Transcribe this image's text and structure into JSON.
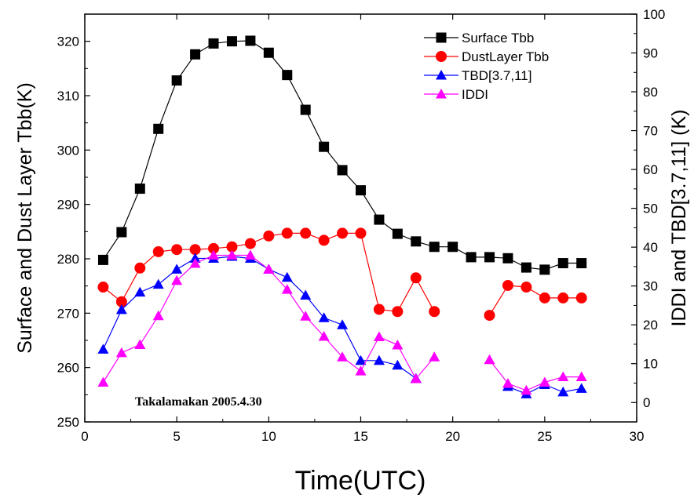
{
  "chart_data": {
    "type": "line",
    "annotation": "Takalamakan 2005.4.30",
    "xlabel": "Time(UTC)",
    "ylabel_left": "Surface and Dust Layer Tbb(K)",
    "ylabel_right": "IDDI and TBD[3.7,11] (K)",
    "xlim": [
      0,
      30
    ],
    "ylim_left": [
      250,
      325
    ],
    "ylim_right": [
      -5,
      100
    ],
    "x_ticks": [
      0,
      5,
      10,
      15,
      20,
      25,
      30
    ],
    "y_left_ticks": [
      250,
      260,
      270,
      280,
      290,
      300,
      310,
      320
    ],
    "y_right_ticks": [
      0,
      10,
      20,
      30,
      40,
      50,
      60,
      70,
      80,
      90,
      100
    ],
    "legend_position": "top-right",
    "grid": false,
    "series": [
      {
        "name": "Surface Tbb",
        "axis": "left",
        "color": "#000000",
        "marker": "square",
        "segments": [
          [
            [
              1,
              279.8
            ],
            [
              2,
              284.9
            ],
            [
              3,
              292.9
            ],
            [
              4,
              303.9
            ],
            [
              5,
              312.8
            ],
            [
              6,
              317.6
            ],
            [
              7,
              319.6
            ],
            [
              8,
              320.0
            ],
            [
              9,
              320.1
            ],
            [
              10,
              317.9
            ],
            [
              11,
              313.8
            ],
            [
              12,
              307.4
            ],
            [
              13,
              300.6
            ],
            [
              14,
              296.3
            ],
            [
              15,
              292.6
            ],
            [
              16,
              287.2
            ],
            [
              17,
              284.6
            ],
            [
              18,
              283.2
            ],
            [
              19,
              282.2
            ],
            [
              20,
              282.2
            ],
            [
              21,
              280.3
            ],
            [
              22,
              280.3
            ],
            [
              23,
              280.1
            ],
            [
              24,
              278.4
            ],
            [
              25,
              278.0
            ],
            [
              26,
              279.2
            ],
            [
              27,
              279.2
            ]
          ]
        ]
      },
      {
        "name": "DustLayer Tbb",
        "axis": "left",
        "color": "#ff0000",
        "marker": "circle",
        "segments": [
          [
            [
              1,
              274.8
            ],
            [
              2,
              272.1
            ],
            [
              3,
              278.3
            ],
            [
              4,
              281.3
            ],
            [
              5,
              281.7
            ],
            [
              6,
              281.7
            ],
            [
              7,
              281.9
            ],
            [
              8,
              282.2
            ],
            [
              9,
              282.8
            ],
            [
              10,
              284.2
            ],
            [
              11,
              284.7
            ],
            [
              12,
              284.7
            ],
            [
              13,
              283.4
            ],
            [
              14,
              284.7
            ],
            [
              15,
              284.7
            ],
            [
              16,
              270.7
            ],
            [
              17,
              270.3
            ],
            [
              18,
              276.5
            ],
            [
              19,
              270.3
            ]
          ],
          [
            [
              22,
              269.6
            ],
            [
              23,
              275.1
            ],
            [
              24,
              274.8
            ],
            [
              25,
              272.8
            ],
            [
              26,
              272.8
            ],
            [
              27,
              272.8
            ]
          ]
        ]
      },
      {
        "name": "TBD[3.7,11]",
        "axis": "right",
        "color": "#0000ff",
        "marker": "triangle",
        "segments": [
          [
            [
              1,
              13.7
            ],
            [
              2,
              23.9
            ],
            [
              3,
              28.4
            ],
            [
              4,
              30.4
            ],
            [
              5,
              34.3
            ],
            [
              6,
              37.1
            ],
            [
              7,
              37.1
            ],
            [
              8,
              37.6
            ],
            [
              9,
              37.1
            ],
            [
              10,
              34.3
            ],
            [
              11,
              32.2
            ],
            [
              12,
              27.6
            ],
            [
              13,
              21.8
            ],
            [
              14,
              20.0
            ],
            [
              15,
              10.8
            ],
            [
              16,
              10.8
            ],
            [
              17,
              9.6
            ],
            [
              18,
              6.2
            ]
          ],
          [
            [
              23,
              4.1
            ],
            [
              24,
              2.2
            ],
            [
              25,
              4.6
            ],
            [
              26,
              2.7
            ],
            [
              27,
              3.6
            ]
          ]
        ]
      },
      {
        "name": "IDDI",
        "axis": "right",
        "color": "#ff00ff",
        "marker": "triangle",
        "segments": [
          [
            [
              1,
              5.2
            ],
            [
              2,
              12.8
            ],
            [
              3,
              14.9
            ],
            [
              4,
              22.3
            ],
            [
              5,
              31.4
            ],
            [
              6,
              35.8
            ],
            [
              7,
              37.9
            ],
            [
              8,
              37.9
            ],
            [
              9,
              37.9
            ],
            [
              10,
              34.3
            ],
            [
              11,
              29.1
            ],
            [
              12,
              22.2
            ],
            [
              13,
              17.0
            ],
            [
              14,
              11.7
            ],
            [
              15,
              8.1
            ],
            [
              16,
              16.9
            ],
            [
              17,
              14.8
            ],
            [
              18,
              6.1
            ],
            [
              19,
              11.7
            ]
          ],
          [
            [
              22,
              11.0
            ],
            [
              23,
              4.9
            ],
            [
              24,
              3.1
            ],
            [
              25,
              5.2
            ],
            [
              26,
              6.6
            ],
            [
              27,
              6.6
            ]
          ]
        ]
      }
    ]
  }
}
